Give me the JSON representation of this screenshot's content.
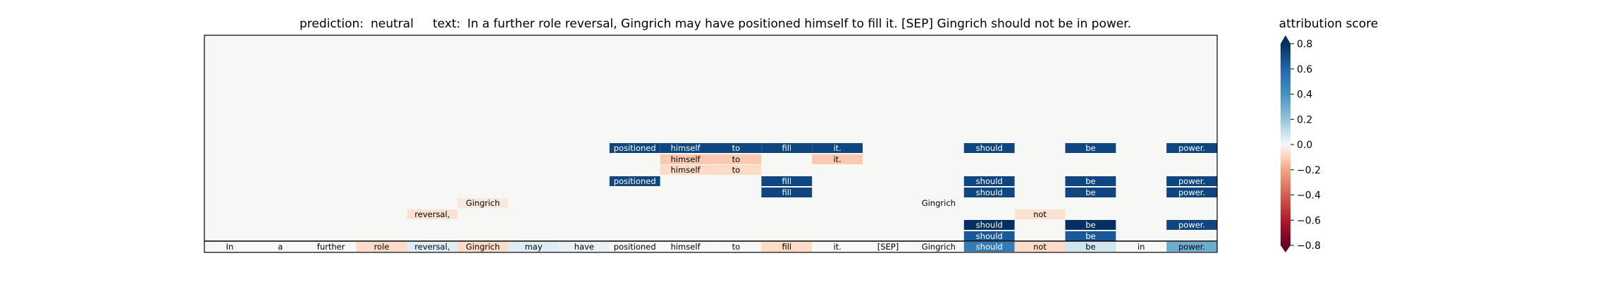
{
  "chart_data": {
    "type": "heatmap",
    "title_parts": [
      "prediction:",
      "neutral",
      "text:",
      "In a further role reversal, Gingrich may have positioned himself to fill it. [SEP] Gingrich should not be in power."
    ],
    "colorbar": {
      "label": "attribution score",
      "range": [
        -0.8,
        0.8
      ],
      "ticks": [
        0.8,
        0.6,
        0.4,
        0.2,
        0.0,
        -0.2,
        -0.4,
        -0.6,
        -0.8
      ],
      "tick_labels": [
        "0.8",
        "0.6",
        "0.4",
        "0.2",
        "0.0",
        "−0.2",
        "−0.4",
        "−0.6",
        "−0.8"
      ],
      "extend": "both",
      "colormap": "RdBu"
    },
    "tokens": [
      "In",
      "a",
      "further",
      "role",
      "reversal,",
      "Gingrich",
      "may",
      "have",
      "positioned",
      "himself",
      "to",
      "fill",
      "it.",
      "[SEP]",
      "Gingrich",
      "should",
      "not",
      "be",
      "in",
      "power."
    ],
    "bottom_row": [
      {
        "token": "In",
        "value": 0.0
      },
      {
        "token": "a",
        "value": 0.0
      },
      {
        "token": "further",
        "value": 0.0
      },
      {
        "token": "role",
        "value": -0.08
      },
      {
        "token": "reversal,",
        "value": 0.05
      },
      {
        "token": "Gingrich",
        "value": -0.08
      },
      {
        "token": "may",
        "value": 0.05
      },
      {
        "token": "have",
        "value": 0.03
      },
      {
        "token": "positioned",
        "value": 0.0
      },
      {
        "token": "himself",
        "value": 0.0
      },
      {
        "token": "to",
        "value": 0.0
      },
      {
        "token": "fill",
        "value": -0.08
      },
      {
        "token": "it.",
        "value": 0.0
      },
      {
        "token": "[SEP]",
        "value": 0.0
      },
      {
        "token": "Gingrich",
        "value": 0.0
      },
      {
        "token": "should",
        "value": 0.5
      },
      {
        "token": "not",
        "value": -0.08
      },
      {
        "token": "be",
        "value": 0.08
      },
      {
        "token": "in",
        "value": 0.0
      },
      {
        "token": "power.",
        "value": 0.3
      }
    ],
    "rows": [
      {
        "row": 1,
        "cells": [
          {
            "token": "positioned",
            "value": 0.72
          },
          {
            "token": "himself",
            "value": 0.72
          },
          {
            "token": "to",
            "value": 0.72
          },
          {
            "token": "fill",
            "value": 0.72
          },
          {
            "token": "it.",
            "value": 0.72
          },
          {
            "token": "should",
            "value": 0.72
          },
          {
            "token": "be",
            "value": 0.72
          },
          {
            "token": "power.",
            "value": 0.72
          }
        ]
      },
      {
        "row": 2,
        "cells": [
          {
            "token": "himself",
            "value": -0.12
          },
          {
            "token": "to",
            "value": -0.12
          },
          {
            "token": "it.",
            "value": -0.12
          }
        ]
      },
      {
        "row": 3,
        "cells": [
          {
            "token": "himself",
            "value": -0.08
          },
          {
            "token": "to",
            "value": -0.08
          }
        ]
      },
      {
        "row": 4,
        "cells": [
          {
            "token": "positioned",
            "value": 0.72
          },
          {
            "token": "fill",
            "value": 0.72
          },
          {
            "token": "should",
            "value": 0.72
          },
          {
            "token": "be",
            "value": 0.72
          },
          {
            "token": "power.",
            "value": 0.72
          }
        ]
      },
      {
        "row": 5,
        "cells": [
          {
            "token": "fill",
            "value": 0.72
          },
          {
            "token": "should",
            "value": 0.72
          },
          {
            "token": "be",
            "value": 0.72
          },
          {
            "token": "power.",
            "value": 0.72
          }
        ]
      },
      {
        "row": 6,
        "cells": [
          {
            "token": "Gingrich",
            "value": -0.04
          },
          {
            "token": "Gingrich",
            "value": 0.0
          }
        ]
      },
      {
        "row": 7,
        "cells": [
          {
            "token": "reversal,",
            "value": -0.06
          },
          {
            "token": "not",
            "value": -0.06
          }
        ]
      },
      {
        "row": 8,
        "cells": [
          {
            "token": "should",
            "value": 0.8
          },
          {
            "token": "be",
            "value": 0.8
          },
          {
            "token": "power.",
            "value": 0.72
          }
        ]
      },
      {
        "row": 9,
        "cells": [
          {
            "token": "should",
            "value": 0.65
          },
          {
            "token": "be",
            "value": 0.65
          }
        ]
      }
    ]
  }
}
